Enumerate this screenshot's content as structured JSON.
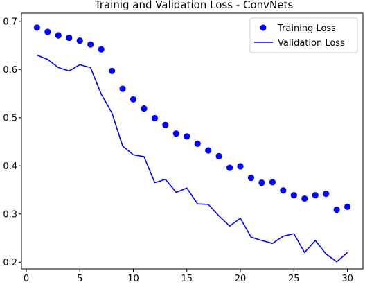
{
  "chart_data": {
    "type": "line",
    "title": "Trainig and Validation Loss - ConvNets",
    "xlabel": "",
    "ylabel": "",
    "xlim": [
      -0.45,
      31.45
    ],
    "ylim": [
      0.186,
      0.717
    ],
    "x_ticks": [
      0,
      5,
      10,
      15,
      20,
      25,
      30
    ],
    "y_ticks": [
      0.2,
      0.3,
      0.4,
      0.5,
      0.6,
      0.7
    ],
    "grid": false,
    "legend_position": "top-right",
    "x": [
      1,
      2,
      3,
      4,
      5,
      6,
      7,
      8,
      9,
      10,
      11,
      12,
      13,
      14,
      15,
      16,
      17,
      18,
      19,
      20,
      21,
      22,
      23,
      24,
      25,
      26,
      27,
      28,
      29,
      30
    ],
    "series": [
      {
        "name": "Training Loss",
        "style": "markers",
        "color": "#0000ff",
        "values": [
          0.687,
          0.678,
          0.671,
          0.666,
          0.66,
          0.652,
          0.642,
          0.597,
          0.56,
          0.538,
          0.519,
          0.499,
          0.485,
          0.467,
          0.461,
          0.446,
          0.432,
          0.42,
          0.396,
          0.399,
          0.375,
          0.365,
          0.366,
          0.349,
          0.339,
          0.332,
          0.339,
          0.342,
          0.309,
          0.315
        ]
      },
      {
        "name": "Validation Loss",
        "style": "line",
        "color": "#0000ff",
        "values": [
          0.63,
          0.621,
          0.604,
          0.597,
          0.61,
          0.604,
          0.549,
          0.51,
          0.441,
          0.423,
          0.419,
          0.365,
          0.372,
          0.345,
          0.354,
          0.321,
          0.32,
          0.296,
          0.275,
          0.291,
          0.252,
          0.245,
          0.239,
          0.254,
          0.259,
          0.22,
          0.245,
          0.217,
          0.201,
          0.22
        ]
      }
    ]
  }
}
